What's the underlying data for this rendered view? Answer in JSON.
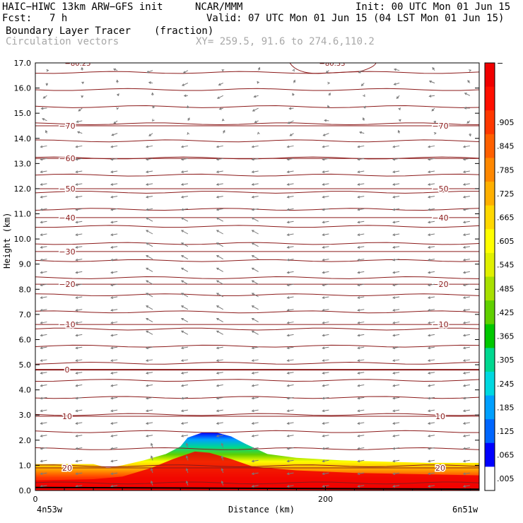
{
  "header": {
    "model": "HAIC−HIWC 13km ARW−GFS init",
    "org": "NCAR/MMM",
    "init": "Init: 00 UTC Mon 01 Jun 15",
    "fcst_label": "Fcst:",
    "fcst_value": "7 h",
    "valid": "Valid: 07 UTC Mon 01 Jun 15 (04 LST Mon 01 Jun 15)",
    "field": "Boundary Layer Tracer",
    "field_unit": "(fraction)",
    "overlay": "Circulation vectors",
    "xy": "XY= 259.5, 91.6 to 274.6,110.2"
  },
  "colors": {
    "contour": "#8b1a1a",
    "vector": "#7a7a7a",
    "colorbar": [
      "#ffffff",
      "#0000ff",
      "#0066ff",
      "#00a0ff",
      "#00d8e0",
      "#00d890",
      "#00c800",
      "#60d000",
      "#a8e000",
      "#e0f000",
      "#ffff00",
      "#ffd800",
      "#ffb000",
      "#ff8800",
      "#ff6000",
      "#ff3800",
      "#ff1000",
      "#f00000"
    ]
  },
  "chart_data": {
    "type": "heatmap",
    "ylabel": "Height (km)",
    "xlabel": "Distance (km)",
    "ylim": [
      0,
      17
    ],
    "xlim": [
      0,
      306
    ],
    "y_ticks": [
      "0.0",
      "1.0",
      "2.0",
      "3.0",
      "4.0",
      "5.0",
      "6.0",
      "7.0",
      "8.0",
      "9.0",
      "10.0",
      "11.0",
      "12.0",
      "13.0",
      "14.0",
      "15.0",
      "16.0",
      "17.0"
    ],
    "x_ticks": [
      {
        "value": 0,
        "label": "0"
      },
      {
        "value": 200,
        "label": "200"
      }
    ],
    "x_start_label": "4n53w",
    "x_end_label": "6n51w",
    "colorbar_labels": [
      ".005",
      ".065",
      ".125",
      ".185",
      ".245",
      ".305",
      ".365",
      ".425",
      ".485",
      ".545",
      ".605",
      ".665",
      ".725",
      ".785",
      ".845",
      ".905",
      "−"
    ],
    "temperature_contours": [
      {
        "label": "20",
        "height": 0.9
      },
      {
        "label": "10",
        "height": 2.95
      },
      {
        "label": "0",
        "height": 4.8
      },
      {
        "label": "−10",
        "height": 6.6
      },
      {
        "label": "−20",
        "height": 8.2
      },
      {
        "label": "−30",
        "height": 9.5
      },
      {
        "label": "−40",
        "height": 10.85
      },
      {
        "label": "−50",
        "height": 12.0
      },
      {
        "label": "−60",
        "height": 13.2
      },
      {
        "label": "−70",
        "height": 14.5
      }
    ],
    "top_contour_labels": [
      "−80.25",
      "−80.33"
    ],
    "tracer_surface": [
      [
        0,
        1.05
      ],
      [
        40,
        1.05
      ],
      [
        50,
        0.9
      ],
      [
        60,
        1.0
      ],
      [
        75,
        1.2
      ],
      [
        90,
        1.45
      ],
      [
        100,
        1.75
      ],
      [
        105,
        2.1
      ],
      [
        115,
        2.3
      ],
      [
        125,
        2.3
      ],
      [
        135,
        2.15
      ],
      [
        145,
        1.85
      ],
      [
        160,
        1.45
      ],
      [
        180,
        1.3
      ],
      [
        210,
        1.2
      ],
      [
        240,
        1.15
      ],
      [
        270,
        1.1
      ],
      [
        306,
        1.1
      ]
    ],
    "tracer_core": [
      [
        0,
        0.4
      ],
      [
        40,
        0.45
      ],
      [
        60,
        0.55
      ],
      [
        80,
        0.9
      ],
      [
        95,
        1.25
      ],
      [
        110,
        1.55
      ],
      [
        120,
        1.5
      ],
      [
        135,
        1.25
      ],
      [
        150,
        0.95
      ],
      [
        180,
        0.8
      ],
      [
        220,
        0.7
      ],
      [
        306,
        0.6
      ]
    ]
  }
}
